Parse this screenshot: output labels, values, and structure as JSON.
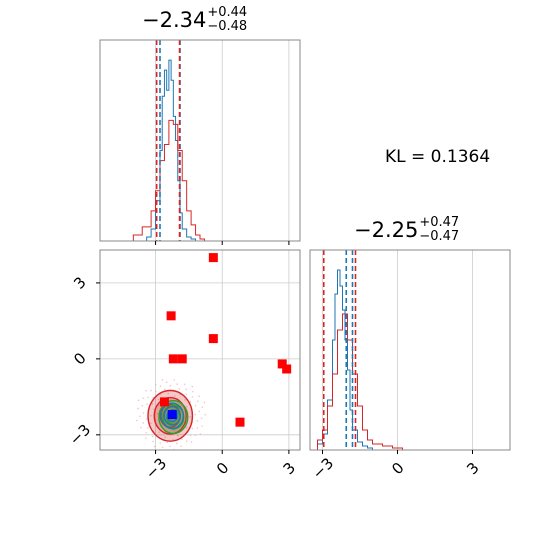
{
  "titles": {
    "param0": {
      "main": "−2.34",
      "sup": "+0.44",
      "sub": "−0.48"
    },
    "param1": {
      "main": "−2.25",
      "sup": "+0.47",
      "sub": "−0.47"
    }
  },
  "kl_text": "KL = 0.1364",
  "tick_labels": [
    "−3",
    "0",
    "3"
  ],
  "chart_data": [
    {
      "panel": "param0-marginal",
      "type": "line",
      "title": "−2.34 +0.44 −0.48",
      "xlim": [
        -5.5,
        3.5
      ],
      "grid": true,
      "series": [
        {
          "name": "",
          "color": "#1f77b4",
          "x": [
            -3.6,
            -3.4,
            -3.2,
            -3.0,
            -2.8,
            -2.7,
            -2.6,
            -2.5,
            -2.4,
            -2.3,
            -2.2,
            -2.1,
            -2.0,
            -1.9,
            -1.8,
            -1.6,
            -1.4,
            -1.2
          ],
          "values": [
            0.0,
            0.02,
            0.06,
            0.2,
            0.45,
            0.72,
            0.85,
            0.75,
            0.9,
            0.8,
            0.62,
            0.5,
            0.3,
            0.14,
            0.06,
            0.02,
            0.01,
            0.0
          ]
        },
        {
          "name": "",
          "color": "#d62728",
          "x": [
            -4.4,
            -4.0,
            -3.6,
            -3.2,
            -3.0,
            -2.8,
            -2.6,
            -2.4,
            -2.2,
            -2.0,
            -1.8,
            -1.6,
            -1.4,
            -1.2,
            -1.0,
            -0.8
          ],
          "values": [
            0.0,
            0.03,
            0.07,
            0.15,
            0.25,
            0.4,
            0.48,
            0.6,
            0.58,
            0.45,
            0.3,
            0.15,
            0.08,
            0.03,
            0.01,
            0.0
          ]
        }
      ],
      "quantile_lines": [
        {
          "color": "#1f77b4",
          "x": [
            -2.8,
            -1.9
          ]
        },
        {
          "color": "#d62728",
          "x": [
            -2.95,
            -1.92
          ]
        }
      ]
    },
    {
      "panel": "param1-marginal",
      "type": "line",
      "title": "−2.25 +0.47 −0.47",
      "xlim": [
        -3.5,
        4.5
      ],
      "grid": true,
      "series": [
        {
          "name": "",
          "color": "#1f77b4",
          "x": [
            -3.4,
            -3.2,
            -3.0,
            -2.8,
            -2.6,
            -2.5,
            -2.4,
            -2.3,
            -2.2,
            -2.1,
            -2.0,
            -1.9,
            -1.8,
            -1.6,
            -1.4,
            -1.2,
            -1.0
          ],
          "values": [
            0.0,
            0.03,
            0.08,
            0.25,
            0.55,
            0.78,
            0.9,
            0.82,
            0.7,
            0.55,
            0.4,
            0.2,
            0.1,
            0.04,
            0.02,
            0.01,
            0.0
          ]
        },
        {
          "name": "",
          "color": "#d62728",
          "x": [
            -3.4,
            -3.2,
            -3.0,
            -2.8,
            -2.6,
            -2.4,
            -2.2,
            -2.0,
            -1.8,
            -1.6,
            -1.4,
            -1.2,
            -1.0,
            -0.6,
            -0.2,
            0.2
          ],
          "values": [
            0.0,
            0.05,
            0.1,
            0.22,
            0.38,
            0.6,
            0.68,
            0.55,
            0.38,
            0.22,
            0.1,
            0.05,
            0.03,
            0.02,
            0.01,
            0.0
          ]
        }
      ],
      "quantile_lines": [
        {
          "color": "#1f77b4",
          "x": [
            -2.05,
            -1.8
          ]
        },
        {
          "color": "#d62728",
          "x": [
            -2.95,
            -1.68
          ]
        }
      ]
    },
    {
      "panel": "joint",
      "type": "scatter",
      "xlim": [
        -5.5,
        3.5
      ],
      "ylim": [
        -3.6,
        4.3
      ],
      "xticks": [
        -3,
        0,
        3
      ],
      "yticks": [
        -3,
        0,
        3
      ],
      "grid": true,
      "series": [
        {
          "name": "",
          "color": "#ff0000",
          "marker": "square",
          "x": [
            -2.6,
            -2.3,
            -2.2,
            -1.8,
            -0.4,
            -0.4,
            0.8,
            2.7,
            2.9
          ],
          "y": [
            -1.7,
            1.7,
            0.0,
            0.0,
            4.0,
            0.8,
            -2.5,
            -0.2,
            -0.4
          ]
        },
        {
          "name": "",
          "color": "#0000ff",
          "marker": "square",
          "x": [
            -2.25
          ],
          "y": [
            -2.2
          ]
        }
      ],
      "contours": [
        {
          "color": "#d62728",
          "filled": true,
          "center": [
            -2.34,
            -2.25
          ],
          "spread": [
            1.0,
            1.0
          ]
        },
        {
          "color": "#2ca02c",
          "filled": true,
          "center": [
            -2.2,
            -2.3
          ],
          "spread": [
            0.65,
            0.65
          ]
        },
        {
          "color": "#1f77b4",
          "filled": false,
          "center": [
            -2.25,
            -2.25
          ],
          "spread": [
            0.5,
            0.5
          ]
        }
      ]
    }
  ],
  "colors": {
    "blue": "#1f77b4",
    "red": "#d62728",
    "green": "#2ca02c",
    "marker_red": "#ff0000",
    "marker_blue": "#0000ff"
  }
}
